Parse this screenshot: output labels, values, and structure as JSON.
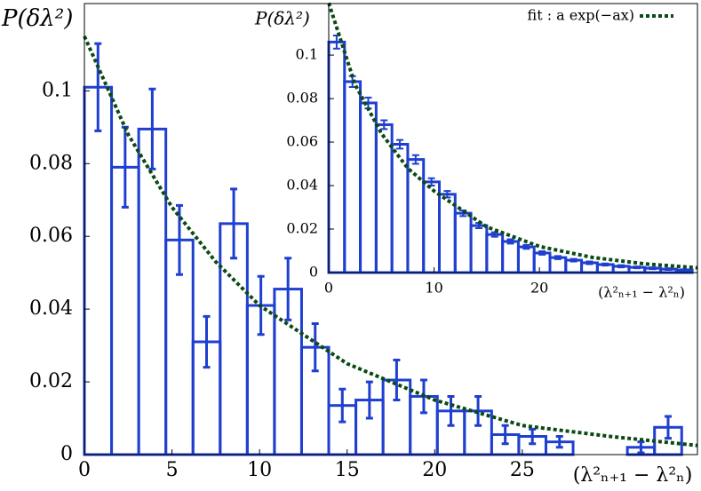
{
  "chart_data": [
    {
      "type": "histogram",
      "ylabel": "P(δλ²)",
      "xlabel": "(λ²ₙ₊₁ − λ²ₙ)",
      "bins": [
        0,
        1.55,
        3.1,
        4.65,
        6.2,
        7.75,
        9.3,
        10.85,
        12.4,
        13.95,
        15.5,
        17.05,
        18.6,
        20.15,
        21.7,
        23.25,
        24.8,
        26.35,
        27.9,
        29.45,
        31,
        32.55,
        34.1
      ],
      "values": [
        0.101,
        0.079,
        0.0895,
        0.059,
        0.031,
        0.0635,
        0.041,
        0.0455,
        0.0295,
        0.0135,
        0.015,
        0.0205,
        0.016,
        0.012,
        0.012,
        0.0055,
        0.005,
        0.0035,
        0,
        0,
        0.002,
        0.0075
      ],
      "errors": [
        0.012,
        0.011,
        0.011,
        0.0095,
        0.007,
        0.0095,
        0.008,
        0.0085,
        0.0065,
        0.0045,
        0.005,
        0.0055,
        0.0045,
        0.004,
        0.004,
        0.0025,
        0.002,
        0.0015,
        0,
        0,
        0.0015,
        0.003
      ],
      "color": "#1f3fd0",
      "fit": {
        "color": "#0b4a12",
        "x": [
          0,
          2.5,
          5,
          7.5,
          10,
          15,
          20,
          25,
          30,
          35
        ],
        "values": [
          0.115,
          0.088,
          0.068,
          0.053,
          0.041,
          0.025,
          0.015,
          0.008,
          0.005,
          0.0025
        ]
      },
      "xlim": [
        0,
        35
      ],
      "ylim": [
        0,
        0.124
      ],
      "xticks": [
        0,
        5,
        10,
        15,
        20,
        25
      ],
      "yticks": [
        0,
        0.02,
        0.04,
        0.06,
        0.08,
        0.1
      ]
    },
    {
      "type": "histogram",
      "ylabel": "P(δλ²)",
      "xlabel": "(λ²ₙ₊₁ − λ²ₙ)",
      "bins": [
        0,
        1.5,
        3,
        4.5,
        6,
        7.5,
        9,
        10.5,
        12,
        13.5,
        15,
        16.5,
        18,
        19.5,
        21,
        22.5,
        24,
        25.5,
        27,
        28.5,
        30,
        31.5,
        33,
        34.5
      ],
      "values": [
        0.106,
        0.0878,
        0.078,
        0.068,
        0.059,
        0.052,
        0.0417,
        0.036,
        0.0273,
        0.0216,
        0.0175,
        0.0143,
        0.0118,
        0.009,
        0.0069,
        0.0057,
        0.0045,
        0.0037,
        0.0029,
        0.0024,
        0.002,
        0.0016,
        0.0012
      ],
      "errors": [
        0.003,
        0.0025,
        0.0025,
        0.002,
        0.002,
        0.002,
        0.0017,
        0.0015,
        0.0013,
        0.0012,
        0.001,
        0.001,
        0.0009,
        0.0008,
        0.0007,
        0.0006,
        0.0006,
        0.0005,
        0.0005,
        0.0004,
        0.0004,
        0.0004,
        0.0003
      ],
      "color": "#1f3fd0",
      "fit": {
        "name": "fit : a exp(−ax)",
        "color": "#0b4a12",
        "x": [
          0,
          2.5,
          5,
          7.5,
          10,
          15,
          20,
          25,
          30,
          35
        ],
        "values": [
          0.124,
          0.0865,
          0.064,
          0.048,
          0.0375,
          0.021,
          0.012,
          0.007,
          0.004,
          0.0022
        ]
      },
      "legend": "upper right",
      "xlim": [
        0,
        35
      ],
      "ylim": [
        0,
        0.1237
      ],
      "xticks": [
        0,
        10,
        20
      ],
      "yticks": [
        0,
        0.02,
        0.04,
        0.06,
        0.08,
        0.1
      ]
    }
  ]
}
